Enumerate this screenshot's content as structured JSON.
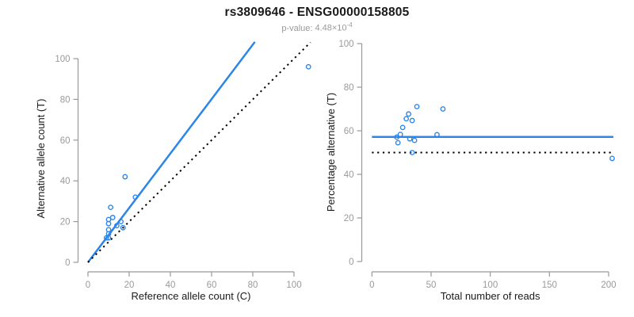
{
  "title": "rs3809646 - ENSG00000158805",
  "p_value": {
    "label": "p-value:",
    "mantissa": "4.48",
    "times_base": "×10",
    "exponent": "-4"
  },
  "colors": {
    "accent_blue": "#2C86E8",
    "dotted_black": "#000000",
    "axis_gray": "#999999",
    "tick_label_gray": "#9a9a9a",
    "label_black": "#1a1a1a",
    "subtitle_gray": "#9a9a9a"
  },
  "chart_data": [
    {
      "type": "scatter",
      "panel": "left",
      "xlabel": "Reference allele count (C)",
      "ylabel": "Alternative allele count (T)",
      "xticks": [
        0,
        20,
        40,
        60,
        80,
        100
      ],
      "yticks": [
        0,
        20,
        40,
        60,
        80,
        100
      ],
      "xlim": [
        0,
        108
      ],
      "ylim": [
        0,
        108
      ],
      "grid": false,
      "point_style": "open-circle",
      "point_color": "#2C86E8",
      "points": [
        [
          11,
          27
        ],
        [
          18,
          42
        ],
        [
          10,
          21
        ],
        [
          10,
          19
        ],
        [
          12,
          22
        ],
        [
          10,
          16
        ],
        [
          10,
          14
        ],
        [
          23,
          32
        ],
        [
          10,
          12
        ],
        [
          14,
          18
        ],
        [
          16,
          20
        ],
        [
          9,
          12
        ],
        [
          17,
          17
        ],
        [
          107,
          96
        ]
      ],
      "lines": [
        {
          "name": "fitted-ratio-line",
          "style": "solid",
          "color": "#2C86E8",
          "from": [
            0,
            0
          ],
          "to": [
            81,
            108.2
          ]
        },
        {
          "name": "identity-line",
          "style": "dotted",
          "color": "#000000",
          "from": [
            0,
            0
          ],
          "to": [
            108,
            108
          ]
        }
      ]
    },
    {
      "type": "scatter",
      "panel": "right",
      "xlabel": "Total number of reads",
      "ylabel": "Percentage alternative (T)",
      "xticks": [
        0,
        50,
        100,
        150,
        200
      ],
      "yticks": [
        0,
        20,
        40,
        60,
        80,
        100
      ],
      "xlim": [
        0,
        208
      ],
      "ylim": [
        0,
        100
      ],
      "grid": false,
      "point_style": "open-circle",
      "point_color": "#2C86E8",
      "points": [
        [
          38,
          71.1
        ],
        [
          60,
          70
        ],
        [
          31,
          67.7
        ],
        [
          29,
          65.5
        ],
        [
          34,
          64.7
        ],
        [
          26,
          61.5
        ],
        [
          24,
          58.3
        ],
        [
          55,
          58.2
        ],
        [
          22,
          54.5
        ],
        [
          32,
          56.3
        ],
        [
          36,
          55.6
        ],
        [
          21,
          57.1
        ],
        [
          34,
          50
        ],
        [
          203,
          47.3
        ]
      ],
      "lines": [
        {
          "name": "mean-percentage-line",
          "style": "solid",
          "color": "#2C86E8",
          "from": [
            0,
            57.2
          ],
          "to": [
            204,
            57.2
          ]
        },
        {
          "name": "fifty-percent-line",
          "style": "dotted",
          "color": "#000000",
          "from": [
            0,
            50
          ],
          "to": [
            204,
            50
          ]
        }
      ]
    }
  ]
}
